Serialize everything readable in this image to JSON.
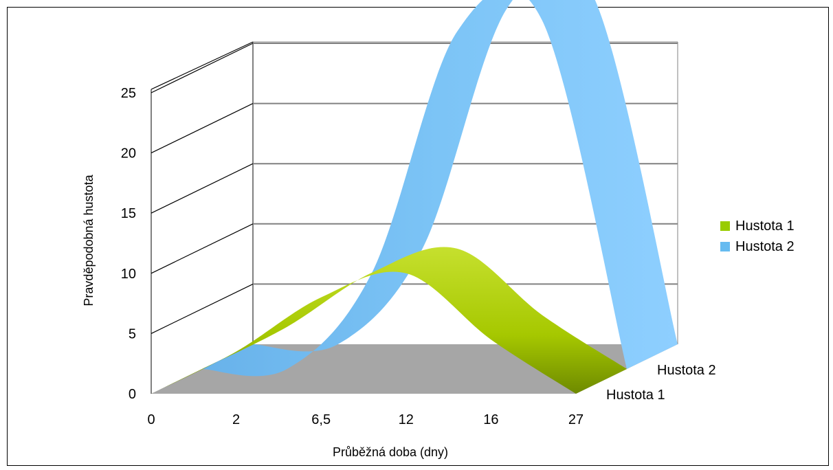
{
  "chart_data": {
    "type": "area",
    "title": "",
    "xlabel": "Průběžná doba (dny)",
    "ylabel": "Pravděpodobná hustota",
    "categories": [
      "0",
      "2",
      "6,5",
      "12",
      "16",
      "27"
    ],
    "y_ticks": [
      "0",
      "5",
      "10",
      "15",
      "20",
      "25"
    ],
    "ylim": [
      0,
      25
    ],
    "series": [
      {
        "name": "Hustota 1",
        "color": "#99cc00",
        "values": [
          0,
          3.5,
          8,
          10,
          4.5,
          0
        ]
      },
      {
        "name": "Hustota 2",
        "color": "#66bbf0",
        "values": [
          0,
          0,
          8,
          28,
          29,
          0
        ]
      }
    ],
    "depth_labels": [
      "Hustota 1",
      "Hustota 2"
    ],
    "legend": {
      "position": "right",
      "entries": [
        "Hustota 1",
        "Hustota 2"
      ]
    },
    "grid": true,
    "style": "3d"
  }
}
